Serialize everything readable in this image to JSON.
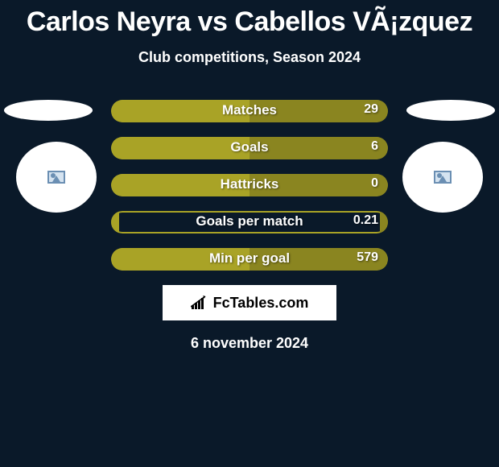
{
  "header": {
    "title": "Carlos Neyra vs Cabellos VÃ¡zquez",
    "subtitle": "Club competitions, Season 2024"
  },
  "colors": {
    "background": "#0a1929",
    "bar_primary": "#a9a326",
    "bar_secondary": "#8a8520",
    "bar_accent": "#0a1929",
    "text": "#ffffff",
    "ellipse": "#ffffff"
  },
  "stats": [
    {
      "label": "Matches",
      "value": "29",
      "left_pct": 50,
      "right_pct": 50,
      "bg": "#a9a326",
      "left_color": "#a9a326",
      "right_color": "#8a8520"
    },
    {
      "label": "Goals",
      "value": "6",
      "left_pct": 50,
      "right_pct": 50,
      "bg": "#a9a326",
      "left_color": "#a9a326",
      "right_color": "#8a8520"
    },
    {
      "label": "Hattricks",
      "value": "0",
      "left_pct": 50,
      "right_pct": 50,
      "bg": "#a9a326",
      "left_color": "#a9a326",
      "right_color": "#8a8520"
    },
    {
      "label": "Goals per match",
      "value": "0.21",
      "left_pct": 3,
      "right_pct": 3,
      "bg": "#0a1929",
      "left_color": "#a9a326",
      "right_color": "#8a8520",
      "border": true
    },
    {
      "label": "Min per goal",
      "value": "579",
      "left_pct": 50,
      "right_pct": 50,
      "bg": "#a9a326",
      "left_color": "#a9a326",
      "right_color": "#8a8520"
    }
  ],
  "logo": {
    "text": "FcTables.com"
  },
  "footer": {
    "date": "6 november 2024"
  },
  "typography": {
    "title_size": 34,
    "subtitle_size": 18,
    "bar_label_size": 17,
    "bar_value_size": 16,
    "date_size": 18
  }
}
